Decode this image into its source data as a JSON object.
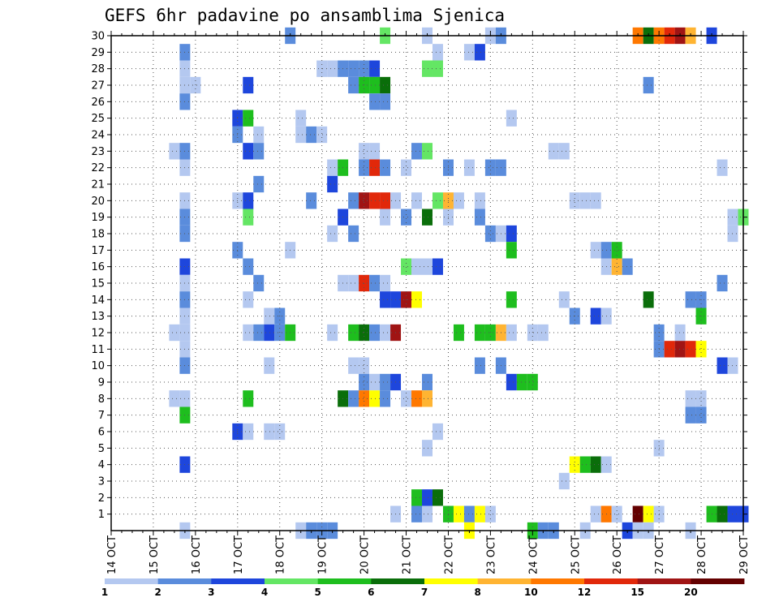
{
  "chart_data": {
    "type": "heatmap",
    "title": "GEFS 6hr padavine po ansamblima Sjenica",
    "xlabel": "",
    "ylabel": "",
    "x_tick_labels": [
      "14 OCT",
      "15 OCT",
      "16 OCT",
      "17 OCT",
      "18 OCT",
      "19 OCT",
      "20 OCT",
      "21 OCT",
      "22 OCT",
      "23 OCT",
      "24 OCT",
      "25 OCT",
      "26 OCT",
      "27 OCT",
      "28 OCT",
      "29 OCT"
    ],
    "xlim_steps": [
      0,
      60
    ],
    "y_tick_labels": [
      "1",
      "2",
      "3",
      "4",
      "5",
      "6",
      "7",
      "8",
      "9",
      "10",
      "11",
      "12",
      "13",
      "14",
      "15",
      "16",
      "17",
      "18",
      "19",
      "20",
      "21",
      "22",
      "23",
      "24",
      "25",
      "26",
      "27",
      "28",
      "29",
      "30"
    ],
    "ylim_members": [
      0,
      30
    ],
    "grid": true,
    "colorbar": {
      "labels": [
        "1",
        "2",
        "3",
        "4",
        "5",
        "6",
        "7",
        "8",
        "10",
        "12",
        "15",
        "20"
      ],
      "colors": [
        "#b4c8f0",
        "#5a8cdc",
        "#1e46dc",
        "#64e664",
        "#1ebe1e",
        "#0a6e0a",
        "#ffff00",
        "#ffb432",
        "#ff7800",
        "#e1280a",
        "#a01414",
        "#640000"
      ],
      "placement": "bottom"
    },
    "units_note": "cells: [ensemble member, 6h step index from 14 OCT 00Z, color class 0-11]",
    "cells": [
      [
        30,
        17,
        1
      ],
      [
        30,
        26,
        3
      ],
      [
        30,
        30,
        0
      ],
      [
        30,
        36,
        0
      ],
      [
        30,
        37,
        1
      ],
      [
        30,
        50,
        8
      ],
      [
        30,
        51,
        5
      ],
      [
        30,
        52,
        8
      ],
      [
        30,
        53,
        9
      ],
      [
        30,
        54,
        10
      ],
      [
        30,
        55,
        7
      ],
      [
        30,
        57,
        2
      ],
      [
        29,
        7,
        1
      ],
      [
        29,
        31,
        0
      ],
      [
        29,
        34,
        0
      ],
      [
        29,
        35,
        2
      ],
      [
        28,
        7,
        0
      ],
      [
        28,
        20,
        0
      ],
      [
        28,
        21,
        0
      ],
      [
        28,
        22,
        1
      ],
      [
        28,
        23,
        1
      ],
      [
        28,
        24,
        1
      ],
      [
        28,
        25,
        2
      ],
      [
        28,
        30,
        3
      ],
      [
        28,
        31,
        3
      ],
      [
        27,
        7,
        0
      ],
      [
        27,
        8,
        0
      ],
      [
        27,
        13,
        2
      ],
      [
        27,
        23,
        1
      ],
      [
        27,
        24,
        4
      ],
      [
        27,
        25,
        4
      ],
      [
        27,
        26,
        5
      ],
      [
        27,
        51,
        1
      ],
      [
        26,
        7,
        1
      ],
      [
        26,
        25,
        1
      ],
      [
        26,
        26,
        1
      ],
      [
        25,
        12,
        2
      ],
      [
        25,
        13,
        4
      ],
      [
        25,
        18,
        0
      ],
      [
        25,
        38,
        0
      ],
      [
        24,
        12,
        1
      ],
      [
        24,
        14,
        0
      ],
      [
        24,
        18,
        0
      ],
      [
        24,
        19,
        1
      ],
      [
        24,
        20,
        0
      ],
      [
        23,
        6,
        0
      ],
      [
        23,
        7,
        1
      ],
      [
        23,
        13,
        2
      ],
      [
        23,
        14,
        1
      ],
      [
        23,
        24,
        0
      ],
      [
        23,
        25,
        0
      ],
      [
        23,
        29,
        1
      ],
      [
        23,
        30,
        3
      ],
      [
        23,
        42,
        0
      ],
      [
        23,
        43,
        0
      ],
      [
        22,
        7,
        0
      ],
      [
        22,
        21,
        0
      ],
      [
        22,
        22,
        4
      ],
      [
        22,
        24,
        1
      ],
      [
        22,
        25,
        9
      ],
      [
        22,
        26,
        1
      ],
      [
        22,
        28,
        0
      ],
      [
        22,
        32,
        1
      ],
      [
        22,
        34,
        0
      ],
      [
        22,
        36,
        1
      ],
      [
        22,
        37,
        1
      ],
      [
        22,
        58,
        0
      ],
      [
        21,
        14,
        1
      ],
      [
        21,
        21,
        2
      ],
      [
        20,
        7,
        0
      ],
      [
        20,
        12,
        0
      ],
      [
        20,
        13,
        2
      ],
      [
        20,
        19,
        1
      ],
      [
        20,
        23,
        1
      ],
      [
        20,
        24,
        10
      ],
      [
        20,
        25,
        9
      ],
      [
        20,
        26,
        9
      ],
      [
        20,
        27,
        0
      ],
      [
        20,
        29,
        0
      ],
      [
        20,
        31,
        3
      ],
      [
        20,
        32,
        7
      ],
      [
        20,
        33,
        0
      ],
      [
        20,
        35,
        0
      ],
      [
        20,
        44,
        0
      ],
      [
        20,
        45,
        0
      ],
      [
        20,
        46,
        0
      ],
      [
        19,
        7,
        1
      ],
      [
        19,
        13,
        3
      ],
      [
        19,
        22,
        2
      ],
      [
        19,
        26,
        0
      ],
      [
        19,
        28,
        1
      ],
      [
        19,
        30,
        5
      ],
      [
        19,
        32,
        0
      ],
      [
        19,
        35,
        1
      ],
      [
        19,
        59,
        0
      ],
      [
        19,
        60,
        3
      ],
      [
        18,
        7,
        1
      ],
      [
        18,
        21,
        0
      ],
      [
        18,
        23,
        1
      ],
      [
        18,
        36,
        1
      ],
      [
        18,
        37,
        0
      ],
      [
        18,
        38,
        2
      ],
      [
        18,
        59,
        0
      ],
      [
        17,
        12,
        1
      ],
      [
        17,
        17,
        0
      ],
      [
        17,
        38,
        4
      ],
      [
        17,
        46,
        0
      ],
      [
        17,
        47,
        1
      ],
      [
        17,
        48,
        4
      ],
      [
        16,
        7,
        2
      ],
      [
        16,
        13,
        1
      ],
      [
        16,
        28,
        3
      ],
      [
        16,
        29,
        0
      ],
      [
        16,
        30,
        0
      ],
      [
        16,
        31,
        2
      ],
      [
        16,
        47,
        0
      ],
      [
        16,
        48,
        7
      ],
      [
        16,
        49,
        1
      ],
      [
        15,
        7,
        0
      ],
      [
        15,
        14,
        1
      ],
      [
        15,
        22,
        0
      ],
      [
        15,
        23,
        0
      ],
      [
        15,
        24,
        9
      ],
      [
        15,
        25,
        1
      ],
      [
        15,
        26,
        0
      ],
      [
        15,
        58,
        1
      ],
      [
        14,
        7,
        1
      ],
      [
        14,
        13,
        0
      ],
      [
        14,
        26,
        2
      ],
      [
        14,
        27,
        2
      ],
      [
        14,
        28,
        10
      ],
      [
        14,
        29,
        6
      ],
      [
        14,
        38,
        4
      ],
      [
        14,
        43,
        0
      ],
      [
        14,
        51,
        5
      ],
      [
        14,
        55,
        1
      ],
      [
        14,
        56,
        1
      ],
      [
        13,
        7,
        0
      ],
      [
        13,
        15,
        0
      ],
      [
        13,
        16,
        1
      ],
      [
        13,
        44,
        1
      ],
      [
        13,
        46,
        2
      ],
      [
        13,
        47,
        0
      ],
      [
        13,
        56,
        4
      ],
      [
        12,
        6,
        0
      ],
      [
        12,
        7,
        0
      ],
      [
        12,
        13,
        0
      ],
      [
        12,
        14,
        1
      ],
      [
        12,
        15,
        2
      ],
      [
        12,
        16,
        1
      ],
      [
        12,
        17,
        4
      ],
      [
        12,
        21,
        0
      ],
      [
        12,
        23,
        4
      ],
      [
        12,
        24,
        5
      ],
      [
        12,
        25,
        1
      ],
      [
        12,
        26,
        0
      ],
      [
        12,
        27,
        10
      ],
      [
        12,
        33,
        4
      ],
      [
        12,
        35,
        4
      ],
      [
        12,
        36,
        4
      ],
      [
        12,
        37,
        7
      ],
      [
        12,
        38,
        0
      ],
      [
        12,
        40,
        0
      ],
      [
        12,
        41,
        0
      ],
      [
        12,
        52,
        1
      ],
      [
        12,
        54,
        0
      ],
      [
        11,
        7,
        0
      ],
      [
        11,
        52,
        1
      ],
      [
        11,
        53,
        9
      ],
      [
        11,
        54,
        10
      ],
      [
        11,
        55,
        9
      ],
      [
        11,
        56,
        6
      ],
      [
        10,
        7,
        1
      ],
      [
        10,
        15,
        0
      ],
      [
        10,
        23,
        0
      ],
      [
        10,
        24,
        0
      ],
      [
        10,
        35,
        1
      ],
      [
        10,
        37,
        1
      ],
      [
        10,
        58,
        2
      ],
      [
        10,
        59,
        0
      ],
      [
        9,
        24,
        1
      ],
      [
        9,
        25,
        0
      ],
      [
        9,
        26,
        1
      ],
      [
        9,
        27,
        2
      ],
      [
        9,
        30,
        1
      ],
      [
        9,
        38,
        2
      ],
      [
        9,
        39,
        4
      ],
      [
        9,
        40,
        4
      ],
      [
        8,
        6,
        0
      ],
      [
        8,
        7,
        0
      ],
      [
        8,
        13,
        4
      ],
      [
        8,
        22,
        5
      ],
      [
        8,
        23,
        1
      ],
      [
        8,
        24,
        8
      ],
      [
        8,
        25,
        6
      ],
      [
        8,
        26,
        1
      ],
      [
        8,
        28,
        0
      ],
      [
        8,
        29,
        8
      ],
      [
        8,
        30,
        7
      ],
      [
        8,
        55,
        0
      ],
      [
        8,
        56,
        0
      ],
      [
        7,
        7,
        4
      ],
      [
        7,
        55,
        1
      ],
      [
        7,
        56,
        1
      ],
      [
        6,
        12,
        2
      ],
      [
        6,
        13,
        0
      ],
      [
        6,
        15,
        0
      ],
      [
        6,
        16,
        0
      ],
      [
        6,
        31,
        0
      ],
      [
        5,
        30,
        0
      ],
      [
        5,
        52,
        0
      ],
      [
        4,
        7,
        2
      ],
      [
        4,
        44,
        6
      ],
      [
        4,
        45,
        4
      ],
      [
        4,
        46,
        5
      ],
      [
        4,
        47,
        0
      ],
      [
        3,
        43,
        0
      ],
      [
        2,
        29,
        4
      ],
      [
        2,
        30,
        2
      ],
      [
        2,
        31,
        5
      ],
      [
        1,
        27,
        0
      ],
      [
        1,
        29,
        1
      ],
      [
        1,
        30,
        0
      ],
      [
        1,
        32,
        4
      ],
      [
        1,
        33,
        6
      ],
      [
        1,
        34,
        1
      ],
      [
        1,
        35,
        6
      ],
      [
        1,
        36,
        0
      ],
      [
        1,
        46,
        0
      ],
      [
        1,
        47,
        8
      ],
      [
        1,
        48,
        0
      ],
      [
        1,
        50,
        11
      ],
      [
        1,
        51,
        6
      ],
      [
        1,
        52,
        0
      ],
      [
        1,
        57,
        4
      ],
      [
        1,
        58,
        5
      ],
      [
        1,
        59,
        2
      ],
      [
        1,
        60,
        2
      ],
      [
        0,
        7,
        0
      ],
      [
        0,
        18,
        0
      ],
      [
        0,
        19,
        1
      ],
      [
        0,
        20,
        1
      ],
      [
        0,
        21,
        1
      ],
      [
        0,
        34,
        6
      ],
      [
        0,
        40,
        4
      ],
      [
        0,
        41,
        1
      ],
      [
        0,
        42,
        1
      ],
      [
        0,
        45,
        0
      ],
      [
        0,
        49,
        2
      ],
      [
        0,
        50,
        0
      ],
      [
        0,
        51,
        0
      ],
      [
        0,
        55,
        0
      ]
    ]
  }
}
